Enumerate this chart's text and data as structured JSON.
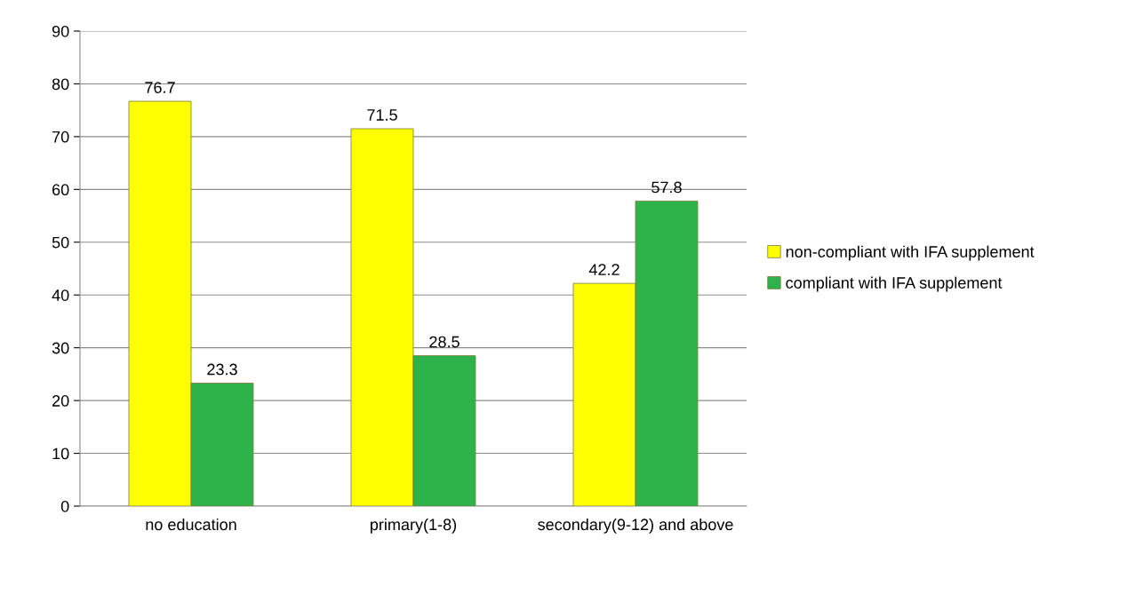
{
  "chart_data": {
    "type": "bar",
    "categories": [
      "no education",
      "primary(1-8)",
      "secondary(9-12) and above"
    ],
    "series": [
      {
        "name": "non-compliant with IFA supplement",
        "color": "#ffff00",
        "values": [
          76.7,
          71.5,
          42.2
        ]
      },
      {
        "name": "compliant with IFA supplement",
        "color": "#2db34a",
        "values": [
          23.3,
          28.5,
          57.8
        ]
      }
    ],
    "ylim": [
      0,
      90
    ],
    "yticks": [
      0,
      10,
      20,
      30,
      40,
      50,
      60,
      70,
      80,
      90
    ],
    "grid": "y",
    "legend": "right",
    "data_labels": true
  }
}
